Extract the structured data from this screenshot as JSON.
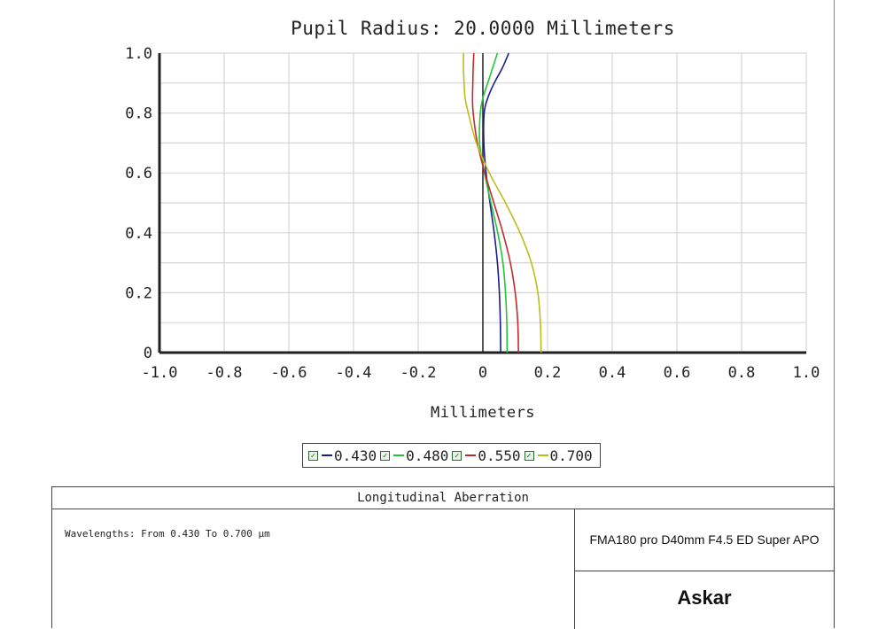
{
  "title": "Pupil Radius: 20.0000 Millimeters",
  "footer": {
    "header": "Longitudinal Aberration",
    "wavelength_note": "Wavelengths: From 0.430 To 0.700 µm",
    "product": "FMA180 pro D40mm F4.5 ED Super APO",
    "brand": "Askar"
  },
  "chart_data": {
    "type": "line",
    "title": "Pupil Radius: 20.0000 Millimeters",
    "xlabel": "Millimeters",
    "ylabel": "",
    "xlim": [
      -1.0,
      1.0
    ],
    "ylim": [
      0,
      1.0
    ],
    "x_ticks": [
      "-1.0",
      "-0.8",
      "-0.6",
      "-0.4",
      "-0.2",
      "0",
      "0.2",
      "0.4",
      "0.6",
      "0.8",
      "1.0"
    ],
    "y_ticks": [
      "0",
      "0.2",
      "0.4",
      "0.6",
      "0.8",
      "1.0"
    ],
    "grid": true,
    "legend_position": "below-plot",
    "series": [
      {
        "name": "0.430",
        "color": "#1c1c8c",
        "points": [
          [
            0.055,
            0
          ],
          [
            0.054,
            0.1
          ],
          [
            0.051,
            0.2
          ],
          [
            0.045,
            0.3
          ],
          [
            0.035,
            0.4
          ],
          [
            0.022,
            0.5
          ],
          [
            0.01,
            0.6
          ],
          [
            0.003,
            0.7
          ],
          [
            0.004,
            0.8
          ],
          [
            0.015,
            0.85
          ],
          [
            0.035,
            0.9
          ],
          [
            0.06,
            0.95
          ],
          [
            0.08,
            1.0
          ]
        ]
      },
      {
        "name": "0.480",
        "color": "#22c63a",
        "points": [
          [
            0.075,
            0
          ],
          [
            0.074,
            0.1
          ],
          [
            0.07,
            0.2
          ],
          [
            0.062,
            0.3
          ],
          [
            0.046,
            0.4
          ],
          [
            0.025,
            0.5
          ],
          [
            0.005,
            0.6
          ],
          [
            -0.01,
            0.7
          ],
          [
            -0.008,
            0.8
          ],
          [
            0.0,
            0.85
          ],
          [
            0.015,
            0.9
          ],
          [
            0.03,
            0.95
          ],
          [
            0.045,
            1.0
          ]
        ]
      },
      {
        "name": "0.550",
        "color": "#c42a2a",
        "points": [
          [
            0.11,
            0
          ],
          [
            0.108,
            0.1
          ],
          [
            0.1,
            0.2
          ],
          [
            0.085,
            0.3
          ],
          [
            0.062,
            0.4
          ],
          [
            0.034,
            0.5
          ],
          [
            0.006,
            0.6
          ],
          [
            -0.017,
            0.7
          ],
          [
            -0.03,
            0.8
          ],
          [
            -0.032,
            0.85
          ],
          [
            -0.031,
            0.9
          ],
          [
            -0.03,
            0.95
          ],
          [
            -0.028,
            1.0
          ]
        ]
      },
      {
        "name": "0.700",
        "color": "#bcbc1c",
        "points": [
          [
            0.18,
            0
          ],
          [
            0.178,
            0.1
          ],
          [
            0.17,
            0.2
          ],
          [
            0.15,
            0.3
          ],
          [
            0.115,
            0.4
          ],
          [
            0.07,
            0.5
          ],
          [
            0.02,
            0.6
          ],
          [
            -0.02,
            0.7
          ],
          [
            -0.045,
            0.8
          ],
          [
            -0.055,
            0.85
          ],
          [
            -0.058,
            0.9
          ],
          [
            -0.06,
            0.95
          ],
          [
            -0.06,
            1.0
          ]
        ]
      }
    ]
  }
}
